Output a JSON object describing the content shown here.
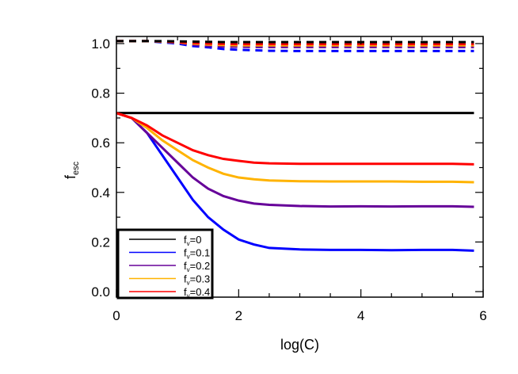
{
  "chart_data": {
    "type": "line",
    "title": "",
    "xlabel": "log(C)",
    "ylabel": "f",
    "ylabel_sub": "esc",
    "xlim": [
      0,
      6
    ],
    "ylim": [
      -0.04,
      1.04
    ],
    "xticks": [
      0,
      2,
      4,
      6
    ],
    "yticks": [
      0.0,
      0.2,
      0.4,
      0.6,
      0.8,
      1.0
    ],
    "ytick_labels": [
      "0.0",
      "0.2",
      "0.4",
      "0.6",
      "0.8",
      "1.0"
    ],
    "grid": false,
    "legend_position": "bottom-left",
    "x": [
      0,
      0.25,
      0.5,
      0.75,
      1,
      1.25,
      1.5,
      1.75,
      2,
      2.25,
      2.5,
      3,
      3.5,
      4,
      4.5,
      5,
      5.5,
      5.85
    ],
    "series": [
      {
        "name": "fv=0",
        "label_main": "f",
        "label_sub": "v",
        "label_val": "=0",
        "color": "#000000",
        "style": "solid",
        "values": [
          0.72,
          0.72,
          0.72,
          0.72,
          0.72,
          0.72,
          0.72,
          0.72,
          0.72,
          0.72,
          0.72,
          0.72,
          0.72,
          0.72,
          0.72,
          0.72,
          0.72,
          0.72
        ]
      },
      {
        "name": "fv=0.1",
        "label_main": "f",
        "label_sub": "v",
        "label_val": "=0.1",
        "color": "#0000ff",
        "style": "solid",
        "values": [
          0.72,
          0.7,
          0.64,
          0.55,
          0.46,
          0.37,
          0.3,
          0.25,
          0.21,
          0.19,
          0.176,
          0.17,
          0.168,
          0.168,
          0.167,
          0.168,
          0.168,
          0.165
        ]
      },
      {
        "name": "fv=0.2",
        "label_main": "f",
        "label_sub": "v",
        "label_val": "=0.2",
        "color": "#660099",
        "style": "solid",
        "values": [
          0.72,
          0.7,
          0.64,
          0.58,
          0.52,
          0.46,
          0.415,
          0.385,
          0.367,
          0.355,
          0.35,
          0.345,
          0.343,
          0.344,
          0.343,
          0.344,
          0.344,
          0.342
        ]
      },
      {
        "name": "fv=0.3",
        "label_main": "f",
        "label_sub": "v",
        "label_val": "=0.3",
        "color": "#ffb300",
        "style": "solid",
        "values": [
          0.72,
          0.7,
          0.66,
          0.61,
          0.57,
          0.53,
          0.5,
          0.475,
          0.46,
          0.453,
          0.448,
          0.445,
          0.444,
          0.444,
          0.444,
          0.443,
          0.443,
          0.441
        ]
      },
      {
        "name": "fv=0.4",
        "label_main": "f",
        "label_sub": "v",
        "label_val": "=0.4",
        "color": "#ff0000",
        "style": "solid",
        "values": [
          0.72,
          0.7,
          0.67,
          0.63,
          0.6,
          0.57,
          0.55,
          0.535,
          0.527,
          0.52,
          0.517,
          0.515,
          0.515,
          0.515,
          0.515,
          0.515,
          0.515,
          0.513
        ]
      }
    ],
    "dashed_series": [
      {
        "color": "#0000ff",
        "values": [
          1.01,
          1.01,
          1.01,
          1.005,
          1.0,
          0.99,
          0.985,
          0.978,
          0.975,
          0.973,
          0.971,
          0.97,
          0.97,
          0.97,
          0.97,
          0.97,
          0.97,
          0.97
        ]
      },
      {
        "color": "#660099",
        "values": [
          1.01,
          1.01,
          1.01,
          1.008,
          1.004,
          0.995,
          0.99,
          0.988,
          0.987,
          0.986,
          0.986,
          0.986,
          0.986,
          0.986,
          0.986,
          0.986,
          0.986,
          0.986
        ]
      },
      {
        "color": "#ffb300",
        "values": [
          1.01,
          1.01,
          1.01,
          1.008,
          1.005,
          1.0,
          0.996,
          0.994,
          0.993,
          0.993,
          0.993,
          0.993,
          0.993,
          0.993,
          0.993,
          0.993,
          0.993,
          0.993
        ]
      },
      {
        "color": "#ff0000",
        "values": [
          1.01,
          1.01,
          1.01,
          1.009,
          1.006,
          1.003,
          1.0,
          0.999,
          0.998,
          0.998,
          0.998,
          0.998,
          0.998,
          0.998,
          0.998,
          0.998,
          0.998,
          0.998
        ]
      },
      {
        "color": "#000000",
        "values": [
          1.01,
          1.01,
          1.01,
          1.01,
          1.009,
          1.008,
          1.007,
          1.006,
          1.006,
          1.006,
          1.006,
          1.006,
          1.006,
          1.006,
          1.006,
          1.006,
          1.006,
          1.006
        ]
      }
    ]
  }
}
